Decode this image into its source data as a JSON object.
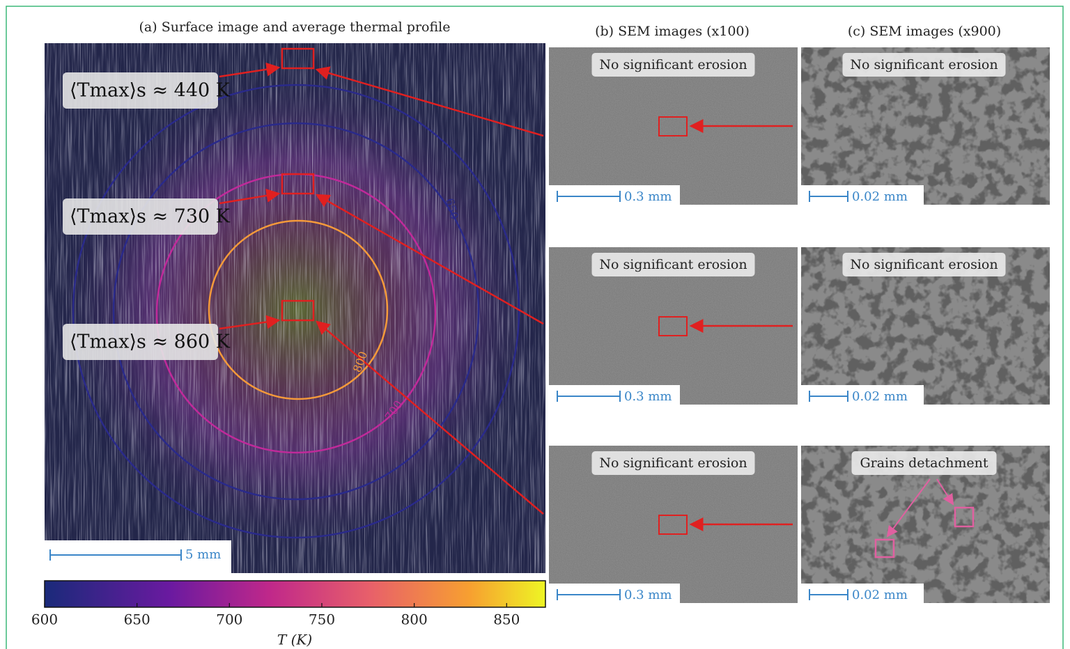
{
  "panel_a": {
    "title": "(a) Surface image and average thermal profile",
    "labels": [
      "⟨Tmax⟩s ≈ 440 K",
      "⟨Tmax⟩s ≈ 730 K",
      "⟨Tmax⟩s ≈ 860 K"
    ],
    "contours": [
      "800",
      "700",
      "650"
    ],
    "scale_bar": "5 mm"
  },
  "panel_b": {
    "title": "(b) SEM images (x100)",
    "rows": [
      {
        "note": "No significant erosion",
        "scale_bar": "0.3 mm"
      },
      {
        "note": "No significant erosion",
        "scale_bar": "0.3 mm"
      },
      {
        "note": "No significant erosion",
        "scale_bar": "0.3 mm"
      }
    ]
  },
  "panel_c": {
    "title": "(c) SEM images (x900)",
    "rows": [
      {
        "note": "No significant erosion",
        "scale_bar": "0.02 mm"
      },
      {
        "note": "No significant erosion",
        "scale_bar": "0.02 mm"
      },
      {
        "note": "Grains detachment",
        "scale_bar": "0.02 mm"
      }
    ]
  },
  "colorbar": {
    "lim": [
      600,
      871
    ],
    "ticks": [
      600,
      650,
      700,
      750,
      800,
      850
    ],
    "label": "T (K)"
  }
}
